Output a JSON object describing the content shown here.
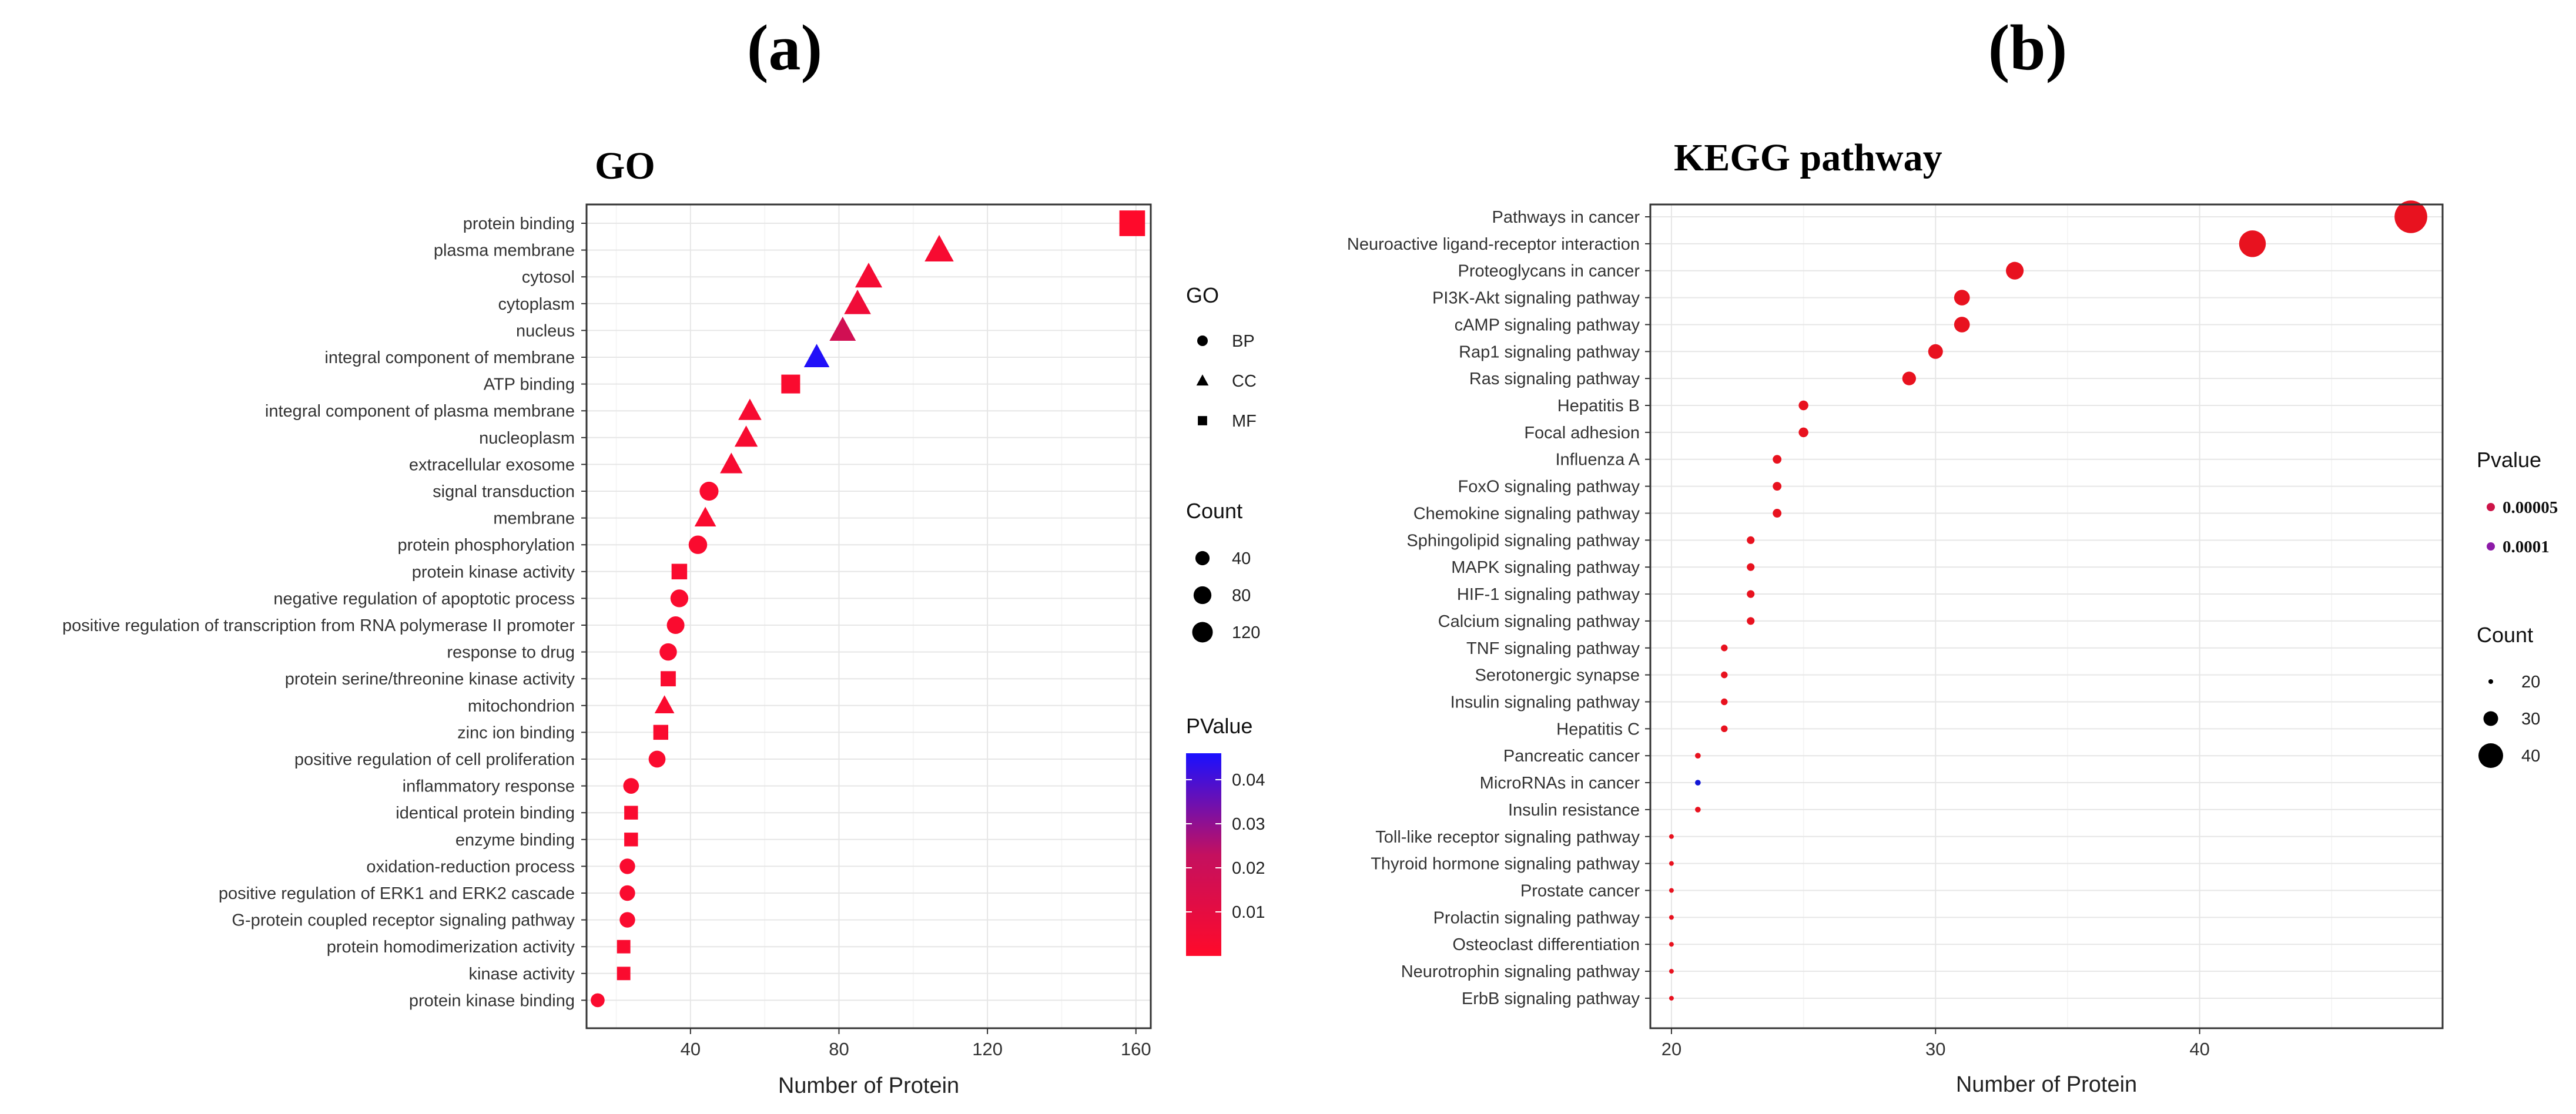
{
  "panels": {
    "a_letter": "(a)",
    "b_letter": "(b)"
  },
  "colors": {
    "low_p": "#ff0a2a",
    "mid_p": "#c4105f",
    "high_p": "#1a10ff",
    "kegg_low": "#e8121f",
    "kegg_high": "#8d1aa8",
    "kegg_blue": "#1216d6"
  },
  "chart_data": [
    {
      "type": "scatter",
      "title": "GO",
      "xlabel": "Number of Protein",
      "ylabel": "",
      "xlim": [
        12,
        164
      ],
      "xticks": [
        40,
        80,
        120,
        160
      ],
      "grid": true,
      "legend_position": "right",
      "categories": [
        "protein binding",
        "plasma membrane",
        "cytosol",
        "cytoplasm",
        "nucleus",
        "integral component of membrane",
        "ATP binding",
        "integral component of plasma membrane",
        "nucleoplasm",
        "extracellular exosome",
        "signal transduction",
        "membrane",
        "protein phosphorylation",
        "protein kinase activity",
        "negative regulation of apoptotic process",
        "positive regulation of transcription from RNA polymerase II promoter",
        "response to drug",
        "protein serine/threonine kinase activity",
        "mitochondrion",
        "zinc ion binding",
        "positive regulation of cell proliferation",
        "inflammatory response",
        "identical protein binding",
        "enzyme binding",
        "oxidation-reduction process",
        "positive regulation of ERK1 and ERK2 cascade",
        "G-protein coupled receptor signaling pathway",
        "protein homodimerization activity",
        "kinase activity",
        "protein kinase binding"
      ],
      "points": [
        {
          "x": 159,
          "go": "MF",
          "pvalue": 0.0005
        },
        {
          "x": 107,
          "go": "CC",
          "pvalue": 0.003
        },
        {
          "x": 88,
          "go": "CC",
          "pvalue": 0.004
        },
        {
          "x": 85,
          "go": "CC",
          "pvalue": 0.006
        },
        {
          "x": 81,
          "go": "CC",
          "pvalue": 0.018
        },
        {
          "x": 74,
          "go": "CC",
          "pvalue": 0.045
        },
        {
          "x": 67,
          "go": "MF",
          "pvalue": 0.002
        },
        {
          "x": 56,
          "go": "CC",
          "pvalue": 0.003
        },
        {
          "x": 55,
          "go": "CC",
          "pvalue": 0.003
        },
        {
          "x": 51,
          "go": "CC",
          "pvalue": 0.003
        },
        {
          "x": 45,
          "go": "BP",
          "pvalue": 0.002
        },
        {
          "x": 44,
          "go": "CC",
          "pvalue": 0.002
        },
        {
          "x": 42,
          "go": "BP",
          "pvalue": 0.002
        },
        {
          "x": 37,
          "go": "MF",
          "pvalue": 0.002
        },
        {
          "x": 37,
          "go": "BP",
          "pvalue": 0.002
        },
        {
          "x": 36,
          "go": "BP",
          "pvalue": 0.002
        },
        {
          "x": 34,
          "go": "BP",
          "pvalue": 0.002
        },
        {
          "x": 34,
          "go": "MF",
          "pvalue": 0.002
        },
        {
          "x": 33,
          "go": "CC",
          "pvalue": 0.002
        },
        {
          "x": 32,
          "go": "MF",
          "pvalue": 0.002
        },
        {
          "x": 31,
          "go": "BP",
          "pvalue": 0.002
        },
        {
          "x": 24,
          "go": "BP",
          "pvalue": 0.002
        },
        {
          "x": 24,
          "go": "MF",
          "pvalue": 0.002
        },
        {
          "x": 24,
          "go": "MF",
          "pvalue": 0.002
        },
        {
          "x": 23,
          "go": "BP",
          "pvalue": 0.002
        },
        {
          "x": 23,
          "go": "BP",
          "pvalue": 0.002
        },
        {
          "x": 23,
          "go": "BP",
          "pvalue": 0.002
        },
        {
          "x": 22,
          "go": "MF",
          "pvalue": 0.002
        },
        {
          "x": 22,
          "go": "MF",
          "pvalue": 0.002
        },
        {
          "x": 15,
          "go": "BP",
          "pvalue": 0.002
        }
      ],
      "legends": {
        "shape_title": "GO",
        "shape_items": [
          "BP",
          "CC",
          "MF"
        ],
        "size_title": "Count",
        "size_items": [
          40,
          80,
          120
        ],
        "color_title": "PValue",
        "color_ticks": [
          0.01,
          0.02,
          0.03,
          0.04
        ],
        "color_tick_labels": [
          "0.01",
          "0.02",
          "0.03",
          "0.04"
        ],
        "color_range": [
          0,
          0.046
        ]
      }
    },
    {
      "type": "scatter",
      "title": "KEGG pathway",
      "xlabel": "Number of Protein",
      "ylabel": "",
      "xlim": [
        19.2,
        49.2
      ],
      "xticks": [
        20,
        30,
        40
      ],
      "grid": true,
      "legend_position": "right",
      "categories": [
        "Pathways in cancer",
        "Neuroactive ligand-receptor interaction",
        "Proteoglycans in cancer",
        "PI3K-Akt signaling pathway",
        "cAMP signaling pathway",
        "Rap1 signaling pathway",
        "Ras signaling pathway",
        "Hepatitis B",
        "Focal adhesion",
        "Influenza A",
        "FoxO signaling pathway",
        "Chemokine signaling pathway",
        "Sphingolipid signaling pathway",
        "MAPK signaling pathway",
        "HIF-1 signaling pathway",
        "Calcium signaling pathway",
        "TNF signaling pathway",
        "Serotonergic synapse",
        "Insulin signaling pathway",
        "Hepatitis C",
        "Pancreatic cancer",
        "MicroRNAs in cancer",
        "Insulin resistance",
        "Toll-like receptor signaling pathway",
        "Thyroid hormone signaling pathway",
        "Prostate cancer",
        "Prolactin signaling pathway",
        "Osteoclast differentiation",
        "Neurotrophin signaling pathway",
        "ErbB signaling pathway"
      ],
      "points": [
        {
          "x": 48,
          "pvalue": 1e-05
        },
        {
          "x": 42,
          "pvalue": 1e-05
        },
        {
          "x": 33,
          "pvalue": 1e-05
        },
        {
          "x": 31,
          "pvalue": 1e-05
        },
        {
          "x": 31,
          "pvalue": 1e-05
        },
        {
          "x": 30,
          "pvalue": 1e-05
        },
        {
          "x": 29,
          "pvalue": 1e-05
        },
        {
          "x": 25,
          "pvalue": 1e-05
        },
        {
          "x": 25,
          "pvalue": 1e-05
        },
        {
          "x": 24,
          "pvalue": 1e-05
        },
        {
          "x": 24,
          "pvalue": 1e-05
        },
        {
          "x": 24,
          "pvalue": 1e-05
        },
        {
          "x": 23,
          "pvalue": 1e-05
        },
        {
          "x": 23,
          "pvalue": 1e-05
        },
        {
          "x": 23,
          "pvalue": 1e-05
        },
        {
          "x": 23,
          "pvalue": 1e-05
        },
        {
          "x": 22,
          "pvalue": 1e-05
        },
        {
          "x": 22,
          "pvalue": 1e-05
        },
        {
          "x": 22,
          "pvalue": 1e-05
        },
        {
          "x": 22,
          "pvalue": 1e-05
        },
        {
          "x": 21,
          "pvalue": 1e-05
        },
        {
          "x": 21,
          "pvalue": 0.00015
        },
        {
          "x": 21,
          "pvalue": 1e-05
        },
        {
          "x": 20,
          "pvalue": 1e-05
        },
        {
          "x": 20,
          "pvalue": 1e-05
        },
        {
          "x": 20,
          "pvalue": 1e-05
        },
        {
          "x": 20,
          "pvalue": 1e-05
        },
        {
          "x": 20,
          "pvalue": 1e-05
        },
        {
          "x": 20,
          "pvalue": 1e-05
        },
        {
          "x": 20,
          "pvalue": 1e-05
        }
      ],
      "legends": {
        "color_title": "Pvalue",
        "color_items": [
          {
            "label": "0.00005",
            "pvalue": 5e-05
          },
          {
            "label": "0.0001",
            "pvalue": 0.0001
          }
        ],
        "size_title": "Count",
        "size_items": [
          20,
          30,
          40
        ]
      }
    }
  ]
}
